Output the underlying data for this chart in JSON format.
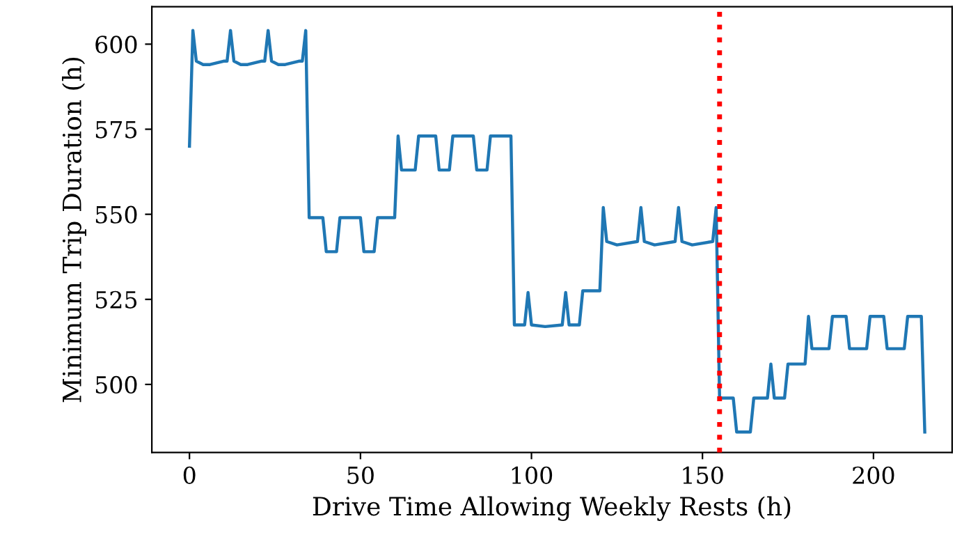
{
  "chart_data": {
    "type": "line",
    "xlabel": "Drive Time Allowing Weekly Rests (h)",
    "ylabel": "Minimum Trip Duration (h)",
    "series": [
      {
        "color": "#1f77b4",
        "x": [
          0,
          1,
          2,
          4,
          6,
          10,
          11,
          12,
          13,
          15,
          17,
          21,
          22,
          23,
          24,
          26,
          28,
          32,
          33,
          34,
          35,
          39,
          40,
          43,
          44,
          50,
          51,
          54,
          55,
          60,
          61,
          62,
          66,
          67,
          72,
          73,
          76,
          77,
          83,
          84,
          87,
          88,
          94,
          95,
          98,
          99,
          100,
          104,
          109,
          110,
          111,
          114,
          115,
          120,
          121,
          122,
          125,
          131,
          132,
          133,
          136,
          142,
          143,
          144,
          147,
          153,
          154,
          155,
          159,
          160,
          164,
          165,
          169,
          170,
          171,
          174,
          175,
          180,
          181,
          182,
          187,
          188,
          192,
          193,
          198,
          199,
          203,
          204,
          209,
          210,
          214,
          215
        ],
        "values": [
          570,
          604,
          595,
          594,
          594,
          595,
          595,
          604,
          595,
          594,
          594,
          595,
          595,
          604,
          595,
          594,
          594,
          595,
          595,
          604,
          549,
          549,
          539,
          539,
          549,
          549,
          539,
          539,
          549,
          549,
          573,
          563,
          563,
          573,
          573,
          563,
          563,
          573,
          573,
          563,
          563,
          573,
          573,
          517.5,
          517.5,
          527,
          517.5,
          517,
          517.5,
          527,
          517.5,
          517.5,
          527.5,
          527.5,
          552,
          542,
          541,
          542,
          552,
          542,
          541,
          542,
          552,
          542,
          541,
          542,
          552,
          496,
          496,
          486,
          486,
          496,
          496,
          506,
          496,
          496,
          506,
          506,
          520,
          510.5,
          510.5,
          520,
          520,
          510.5,
          510.5,
          520,
          520,
          510.5,
          510.5,
          520,
          520,
          486
        ]
      }
    ],
    "xlim": [
      -11,
      223
    ],
    "ylim": [
      480,
      611
    ],
    "xticks": [
      0,
      50,
      100,
      150,
      200
    ],
    "yticks": [
      500,
      525,
      550,
      575,
      600
    ],
    "ref_lines": [
      {
        "axis": "x",
        "value": 155,
        "color": "#ff0000",
        "line_style": "dotted"
      }
    ],
    "grid": false,
    "legend": false,
    "marker": "none",
    "line_style": "solid"
  }
}
